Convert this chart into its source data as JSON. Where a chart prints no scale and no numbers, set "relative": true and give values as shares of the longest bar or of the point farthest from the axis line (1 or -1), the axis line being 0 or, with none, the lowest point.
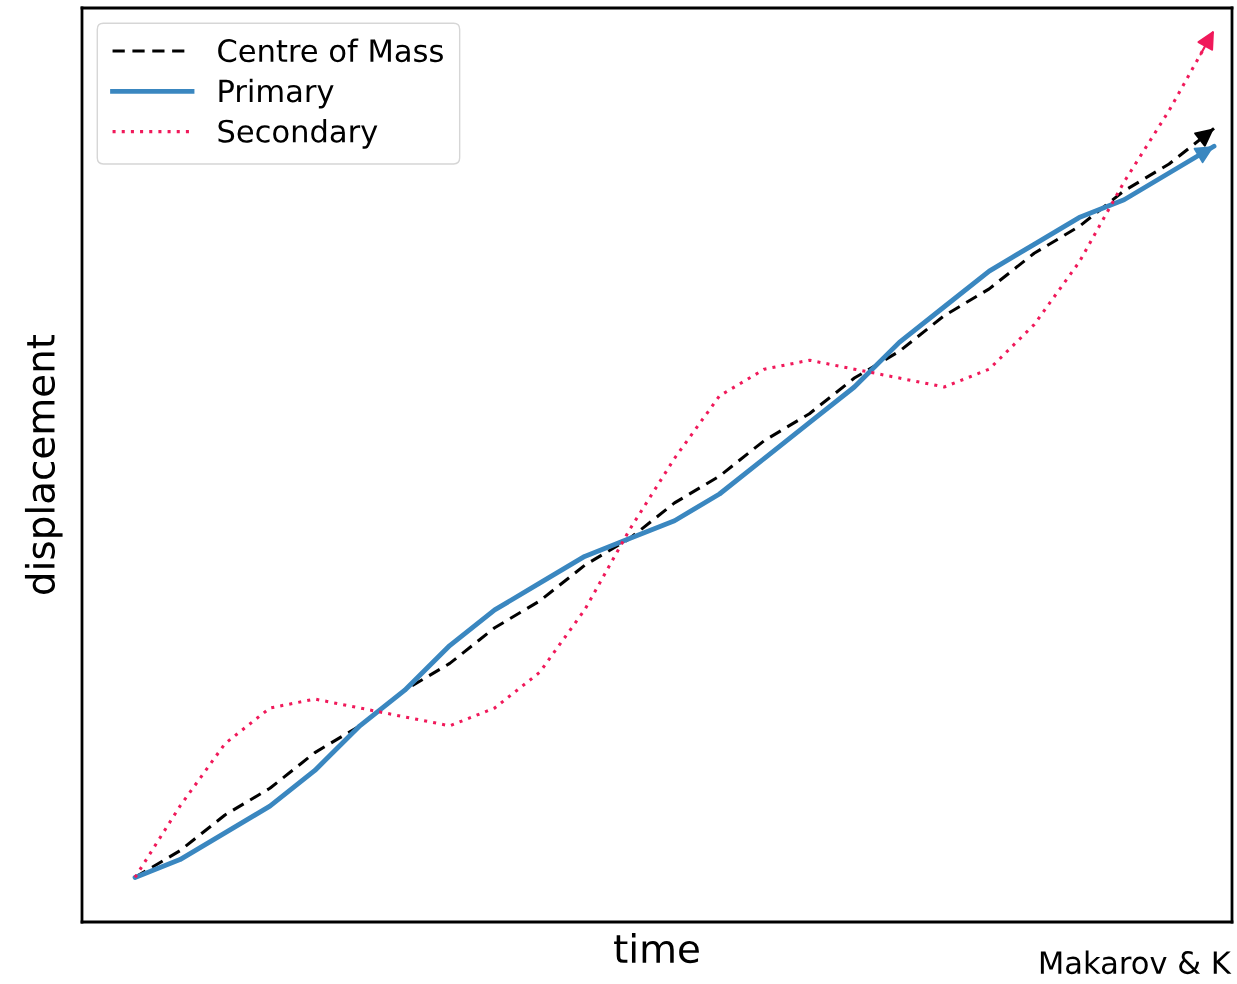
{
  "chart_data": {
    "type": "line",
    "relative": true,
    "xlabel": "time",
    "ylabel": "displacement",
    "legend": "top left",
    "categories": [
      null,
      null,
      null,
      null,
      null,
      null,
      null,
      null,
      null,
      null,
      null,
      null,
      null,
      null,
      null,
      null,
      null,
      null,
      null,
      null,
      null,
      null,
      null,
      null,
      null
    ],
    "series": [
      {
        "name": "Centre of Mass",
        "color": "#000000",
        "line_style": "dashed",
        "values": [
          0.05,
          0.08,
          0.12,
          0.15,
          0.19,
          0.22,
          0.26,
          0.29,
          0.33,
          0.36,
          0.4,
          0.43,
          0.47,
          0.5,
          0.54,
          0.57,
          0.61,
          0.64,
          0.68,
          0.71,
          0.75,
          0.78,
          0.82,
          0.85,
          0.89
        ]
      },
      {
        "name": "Primary",
        "color": "#3a87c0",
        "line_style": "solid",
        "values": [
          0.05,
          0.07,
          0.1,
          0.13,
          0.17,
          0.22,
          0.26,
          0.31,
          0.35,
          0.38,
          0.41,
          0.43,
          0.45,
          0.48,
          0.52,
          0.56,
          0.6,
          0.65,
          0.69,
          0.73,
          0.76,
          0.79,
          0.81,
          0.84,
          0.87
        ]
      },
      {
        "name": "Secondary",
        "color": "#f0195a",
        "line_style": "dotted",
        "values": [
          0.05,
          0.13,
          0.2,
          0.24,
          0.25,
          0.24,
          0.23,
          0.22,
          0.24,
          0.28,
          0.35,
          0.44,
          0.52,
          0.59,
          0.62,
          0.63,
          0.62,
          0.61,
          0.6,
          0.62,
          0.67,
          0.74,
          0.83,
          0.91,
          1.0
        ]
      }
    ],
    "annotations": [
      "Makarov & K"
    ]
  }
}
